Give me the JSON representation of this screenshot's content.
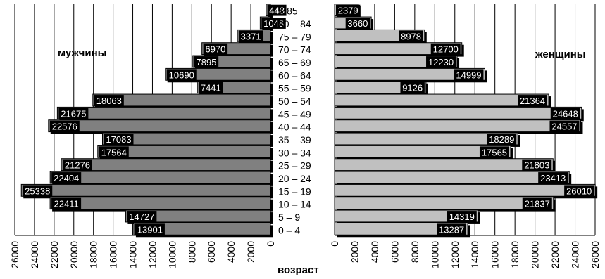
{
  "chart_data": {
    "type": "bar",
    "axis_title": "возраст",
    "categories": [
      "> 85",
      "80 – 84",
      "75 – 79",
      "70 – 74",
      "65 – 69",
      "60 – 64",
      "55 – 59",
      "50 – 54",
      "45 – 49",
      "40 – 44",
      "35 – 39",
      "30 – 34",
      "25 – 29",
      "20 – 24",
      "15 – 19",
      "10 – 14",
      "5 – 9",
      "0 – 4"
    ],
    "series": [
      {
        "name": "мужчины",
        "color": "#808080",
        "values": [
          448,
          1048,
          3371,
          6970,
          7895,
          10690,
          7441,
          18063,
          21675,
          22576,
          17083,
          17564,
          21276,
          22404,
          25338,
          22411,
          14727,
          13901
        ],
        "labels": [
          "448",
          "1048",
          "3371",
          "6970",
          "7895",
          "10690",
          "7441",
          "18063",
          "21675",
          "22576",
          "17083",
          "17564",
          "21276",
          "22404",
          "25338",
          "22411",
          "14727",
          "13901"
        ]
      },
      {
        "name": "женщины",
        "color": "#c0c0c0",
        "values": [
          2379,
          3660,
          8978,
          12700,
          12230,
          14999,
          9126,
          21364,
          24648,
          24557,
          18289,
          17565,
          21803,
          23413,
          26010,
          21837,
          14319,
          13287
        ],
        "labels": [
          "2379",
          "3660",
          "8978",
          "12700",
          "12230",
          "14999",
          "9126",
          "21364",
          "24648",
          "24557",
          "18289",
          "17565",
          "21803",
          "23413",
          "26010",
          "21837",
          "14319",
          "13287"
        ]
      }
    ],
    "xlim": [
      0,
      26000
    ],
    "ticks": [
      0,
      2000,
      4000,
      6000,
      8000,
      10000,
      12000,
      14000,
      16000,
      18000,
      20000,
      22000,
      24000,
      26000
    ],
    "tick_labels": [
      "0",
      "2000",
      "4000",
      "6000",
      "8000",
      "10000",
      "12000",
      "14000",
      "16000",
      "18000",
      "20000",
      "22000",
      "24000",
      "26000"
    ],
    "left_title": "мужчины",
    "right_title": "женщины",
    "grid": true
  }
}
